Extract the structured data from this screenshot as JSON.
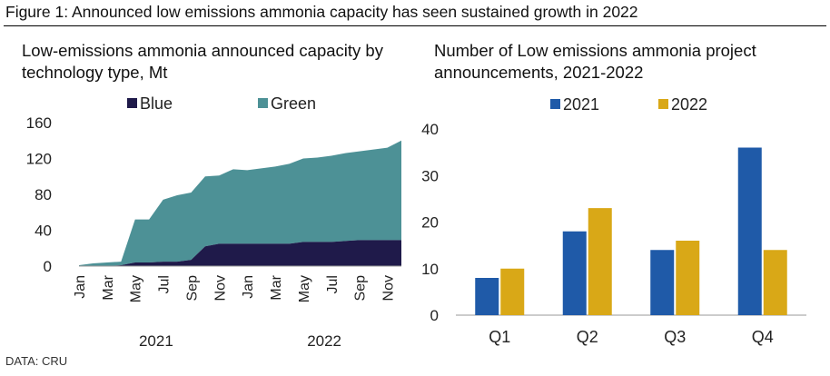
{
  "figure_title": "Figure 1: Announced low emissions ammonia capacity has seen sustained growth in 2022",
  "source": "DATA: CRU",
  "chart_data": [
    {
      "type": "area",
      "title": "Low-emissions ammonia announced capacity by technology type, Mt",
      "stacked": true,
      "legend": "top",
      "ylim": [
        0,
        160
      ],
      "yticks": [
        0,
        40,
        80,
        120,
        160
      ],
      "x": [
        "Jan 2021",
        "Feb 2021",
        "Mar 2021",
        "Apr 2021",
        "May 2021",
        "Jun 2021",
        "Jul 2021",
        "Aug 2021",
        "Sep 2021",
        "Oct 2021",
        "Nov 2021",
        "Dec 2021",
        "Jan 2022",
        "Feb 2022",
        "Mar 2022",
        "Apr 2022",
        "May 2022",
        "Jun 2022",
        "Jul 2022",
        "Aug 2022",
        "Sep 2022",
        "Oct 2022",
        "Nov 2022",
        "Dec 2022"
      ],
      "xtick_labels": [
        "Jan",
        "Mar",
        "May",
        "Jul",
        "Sep",
        "Nov",
        "Jan",
        "Mar",
        "May",
        "Jul",
        "Sep",
        "Nov"
      ],
      "year_labels": [
        "2021",
        "2022"
      ],
      "series": [
        {
          "name": "Blue",
          "color": "#1f1a4a",
          "values": [
            0,
            0,
            0,
            1,
            4,
            4,
            5,
            5,
            7,
            22,
            25,
            25,
            25,
            25,
            25,
            25,
            27,
            27,
            27,
            28,
            29,
            29,
            29,
            29
          ]
        },
        {
          "name": "Green",
          "color": "#4d9196",
          "values": [
            1,
            3,
            4,
            4,
            48,
            48,
            69,
            74,
            75,
            78,
            76,
            83,
            82,
            84,
            86,
            89,
            93,
            94,
            96,
            98,
            99,
            101,
            103,
            111
          ]
        }
      ]
    },
    {
      "type": "bar",
      "title": "Number of Low emissions ammonia project announcements, 2021-2022",
      "legend": "top",
      "categories": [
        "Q1",
        "Q2",
        "Q3",
        "Q4"
      ],
      "ylim": [
        0,
        40
      ],
      "yticks": [
        0,
        10,
        20,
        30,
        40
      ],
      "series": [
        {
          "name": "2021",
          "color": "#1f5aa8",
          "values": [
            8,
            18,
            14,
            36
          ]
        },
        {
          "name": "2022",
          "color": "#d9a817",
          "values": [
            10,
            23,
            16,
            14
          ]
        }
      ]
    }
  ]
}
